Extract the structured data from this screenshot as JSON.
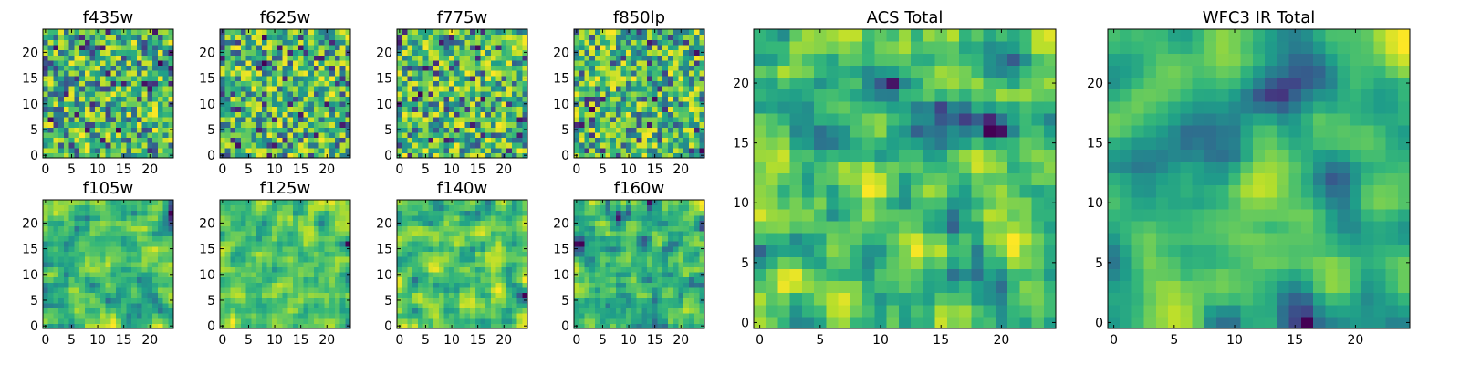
{
  "chart_data": [
    {
      "type": "heatmap",
      "title": "f435w",
      "x_ticks": [
        0,
        5,
        10,
        15,
        20
      ],
      "y_ticks": [
        0,
        5,
        10,
        15,
        20
      ],
      "xlim": [
        -0.5,
        24.5
      ],
      "ylim": [
        -0.5,
        24.5
      ],
      "grid_size": 25,
      "pattern": "noise",
      "seed": 11,
      "smooth": 0,
      "grid": false,
      "colormap": "viridis"
    },
    {
      "type": "heatmap",
      "title": "f625w",
      "x_ticks": [
        0,
        5,
        10,
        15,
        20
      ],
      "y_ticks": [
        0,
        5,
        10,
        15,
        20
      ],
      "xlim": [
        -0.5,
        24.5
      ],
      "ylim": [
        -0.5,
        24.5
      ],
      "grid_size": 25,
      "pattern": "noise",
      "seed": 23,
      "smooth": 0,
      "grid": false,
      "colormap": "viridis"
    },
    {
      "type": "heatmap",
      "title": "f775w",
      "x_ticks": [
        0,
        5,
        10,
        15,
        20
      ],
      "y_ticks": [
        0,
        5,
        10,
        15,
        20
      ],
      "xlim": [
        -0.5,
        24.5
      ],
      "ylim": [
        -0.5,
        24.5
      ],
      "grid_size": 25,
      "pattern": "noise",
      "seed": 37,
      "smooth": 0,
      "grid": false,
      "colormap": "viridis"
    },
    {
      "type": "heatmap",
      "title": "f850lp",
      "x_ticks": [
        0,
        5,
        10,
        15,
        20
      ],
      "y_ticks": [
        0,
        5,
        10,
        15,
        20
      ],
      "xlim": [
        -0.5,
        24.5
      ],
      "ylim": [
        -0.5,
        24.5
      ],
      "grid_size": 25,
      "pattern": "noise",
      "seed": 41,
      "smooth": 0,
      "grid": false,
      "colormap": "viridis"
    },
    {
      "type": "heatmap",
      "title": "f105w",
      "x_ticks": [
        0,
        5,
        10,
        15,
        20
      ],
      "y_ticks": [
        0,
        5,
        10,
        15,
        20
      ],
      "xlim": [
        -0.5,
        24.5
      ],
      "ylim": [
        -0.5,
        24.5
      ],
      "grid_size": 25,
      "pattern": "smooth-noise",
      "seed": 53,
      "smooth": 1,
      "grid": false,
      "colormap": "viridis"
    },
    {
      "type": "heatmap",
      "title": "f125w",
      "x_ticks": [
        0,
        5,
        10,
        15,
        20
      ],
      "y_ticks": [
        0,
        5,
        10,
        15,
        20
      ],
      "xlim": [
        -0.5,
        24.5
      ],
      "ylim": [
        -0.5,
        24.5
      ],
      "grid_size": 25,
      "pattern": "smooth-noise",
      "seed": 61,
      "smooth": 1,
      "grid": false,
      "colormap": "viridis"
    },
    {
      "type": "heatmap",
      "title": "f140w",
      "x_ticks": [
        0,
        5,
        10,
        15,
        20
      ],
      "y_ticks": [
        0,
        5,
        10,
        15,
        20
      ],
      "xlim": [
        -0.5,
        24.5
      ],
      "ylim": [
        -0.5,
        24.5
      ],
      "grid_size": 25,
      "pattern": "smooth-noise",
      "seed": 73,
      "smooth": 1,
      "grid": false,
      "colormap": "viridis"
    },
    {
      "type": "heatmap",
      "title": "f160w",
      "x_ticks": [
        0,
        5,
        10,
        15,
        20
      ],
      "y_ticks": [
        0,
        5,
        10,
        15,
        20
      ],
      "xlim": [
        -0.5,
        24.5
      ],
      "ylim": [
        -0.5,
        24.5
      ],
      "grid_size": 25,
      "pattern": "smooth-noise",
      "seed": 89,
      "smooth": 1,
      "grid": false,
      "colormap": "viridis"
    },
    {
      "type": "heatmap",
      "title": "ACS Total",
      "x_ticks": [
        0,
        5,
        10,
        15,
        20
      ],
      "y_ticks": [
        0,
        5,
        10,
        15,
        20
      ],
      "xlim": [
        -0.5,
        24.5
      ],
      "ylim": [
        -0.5,
        24.5
      ],
      "grid_size": 25,
      "pattern": "smooth-noise",
      "seed": 97,
      "smooth": 1,
      "grid": false,
      "colormap": "viridis"
    },
    {
      "type": "heatmap",
      "title": "WFC3 IR Total",
      "x_ticks": [
        0,
        5,
        10,
        15,
        20
      ],
      "y_ticks": [
        0,
        5,
        10,
        15,
        20
      ],
      "xlim": [
        -0.5,
        24.5
      ],
      "ylim": [
        -0.5,
        24.5
      ],
      "grid_size": 25,
      "pattern": "smooth-noise",
      "seed": 101,
      "smooth": 2,
      "grid": false,
      "colormap": "viridis"
    }
  ]
}
